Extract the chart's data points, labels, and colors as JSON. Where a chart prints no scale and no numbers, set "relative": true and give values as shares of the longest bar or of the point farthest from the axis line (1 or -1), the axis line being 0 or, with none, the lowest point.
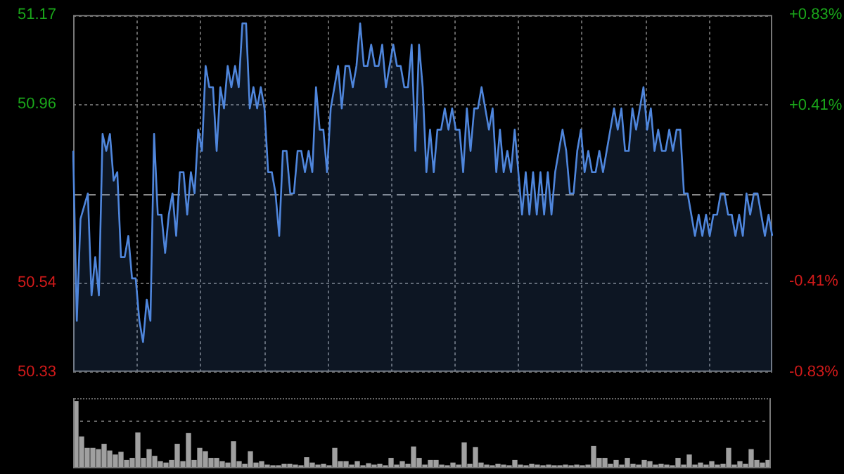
{
  "chart_data": [
    {
      "type": "area",
      "categories": [
        null,
        null,
        null,
        null,
        null,
        null,
        null,
        null,
        null,
        null,
        null,
        null,
        null,
        null,
        null,
        null,
        null,
        null,
        null,
        null,
        null,
        null,
        null,
        null,
        null,
        null,
        null,
        null,
        null,
        null,
        null,
        null,
        null,
        null,
        null,
        null,
        null,
        null,
        null,
        null,
        null,
        null,
        null,
        null,
        null,
        null,
        null,
        null,
        null,
        null,
        null,
        null,
        null,
        null,
        null,
        null,
        null,
        null,
        null,
        null,
        null,
        null,
        null,
        null,
        null,
        null,
        null,
        null,
        null,
        null,
        null,
        null,
        null,
        null,
        null,
        null,
        null,
        null,
        null,
        null,
        null,
        null,
        null,
        null,
        null,
        null,
        null,
        null,
        null,
        null,
        null,
        null,
        null,
        null,
        null,
        null,
        null,
        null,
        null,
        null,
        null,
        null,
        null,
        null,
        null,
        null,
        null,
        null,
        null,
        null,
        null,
        null,
        null,
        null,
        null,
        null,
        null,
        null,
        null,
        null,
        null,
        null,
        null,
        null,
        null,
        null,
        null,
        null,
        null,
        null,
        null,
        null,
        null,
        null,
        null,
        null,
        null,
        null,
        null,
        null,
        null,
        null,
        null,
        null,
        null,
        null,
        null,
        null,
        null,
        null,
        null,
        null,
        null,
        null,
        null,
        null,
        null,
        null,
        null,
        null,
        null,
        null,
        null,
        null,
        null,
        null,
        null,
        null,
        null,
        null,
        null,
        null,
        null,
        null,
        null,
        null,
        null,
        null,
        null,
        null,
        null,
        null,
        null,
        null,
        null,
        null,
        null,
        null,
        null,
        null,
        null
      ],
      "series": [
        {
          "color": "#4f86dc",
          "values": [
            50.85,
            50.45,
            50.69,
            50.72,
            50.75,
            50.51,
            50.6,
            50.51,
            50.89,
            50.85,
            50.89,
            50.78,
            50.8,
            50.6,
            50.6,
            50.65,
            50.55,
            50.55,
            50.45,
            50.4,
            50.5,
            50.45,
            50.89,
            50.7,
            50.7,
            50.61,
            50.7,
            50.75,
            50.65,
            50.8,
            50.8,
            50.7,
            50.8,
            50.75,
            50.9,
            50.85,
            51.05,
            51.0,
            51.0,
            50.85,
            51.0,
            50.95,
            51.05,
            51.0,
            51.05,
            51.0,
            51.15,
            51.15,
            50.95,
            51.0,
            50.95,
            51.0,
            50.95,
            50.8,
            50.8,
            50.75,
            50.65,
            50.85,
            50.85,
            50.75,
            50.75,
            50.85,
            50.85,
            50.8,
            50.85,
            50.8,
            51.0,
            50.9,
            50.9,
            50.8,
            50.95,
            51.0,
            51.05,
            50.95,
            51.05,
            51.05,
            51.0,
            51.05,
            51.15,
            51.05,
            51.05,
            51.1,
            51.05,
            51.05,
            51.1,
            51.0,
            51.05,
            51.1,
            51.05,
            51.05,
            51.0,
            51.0,
            51.1,
            50.85,
            51.1,
            51.0,
            50.8,
            50.9,
            50.8,
            50.9,
            50.9,
            50.95,
            50.9,
            50.95,
            50.9,
            50.9,
            50.8,
            50.95,
            50.85,
            50.95,
            50.95,
            51.0,
            50.95,
            50.9,
            50.95,
            50.8,
            50.9,
            50.8,
            50.85,
            50.8,
            50.9,
            50.8,
            50.7,
            50.8,
            50.7,
            50.8,
            50.7,
            50.8,
            50.7,
            50.8,
            50.7,
            50.8,
            50.85,
            50.9,
            50.85,
            50.75,
            50.75,
            50.85,
            50.9,
            50.8,
            50.85,
            50.8,
            50.8,
            50.85,
            50.8,
            50.85,
            50.9,
            50.95,
            50.9,
            50.95,
            50.85,
            50.85,
            50.95,
            50.9,
            50.95,
            51.0,
            50.9,
            50.95,
            50.85,
            50.9,
            50.85,
            50.85,
            50.9,
            50.85,
            50.9,
            50.9,
            50.75,
            50.75,
            50.7,
            50.65,
            50.7,
            50.65,
            50.7,
            50.65,
            50.7,
            50.7,
            50.75,
            50.75,
            50.7,
            50.7,
            50.65,
            50.7,
            50.65,
            50.75,
            50.7,
            50.75,
            50.75,
            50.7,
            50.65,
            50.7,
            50.65
          ]
        }
      ],
      "ylim": [
        50.33,
        51.17
      ],
      "yticks": [
        50.33,
        50.54,
        50.96,
        51.17
      ],
      "y2lim": [
        -0.83,
        0.83
      ],
      "y2ticks": [
        {
          "value": 0.83,
          "label": "+0.83%"
        },
        {
          "value": 0.41,
          "label": "+0.41%"
        },
        {
          "value": -0.41,
          "label": "-0.41%"
        },
        {
          "value": -0.83,
          "label": "-0.83%"
        }
      ],
      "ref_lines": [
        {
          "axis": "y",
          "value": 50.75,
          "line_style": "dashed"
        }
      ],
      "grid": true,
      "legend": false,
      "marker": "none",
      "line_style": "solid"
    },
    {
      "type": "bar",
      "categories": [
        null,
        null,
        null,
        null,
        null,
        null,
        null,
        null,
        null,
        null,
        null,
        null,
        null,
        null,
        null,
        null,
        null,
        null,
        null,
        null,
        null,
        null,
        null,
        null,
        null,
        null,
        null,
        null,
        null,
        null,
        null,
        null,
        null,
        null,
        null,
        null,
        null,
        null,
        null,
        null,
        null,
        null,
        null,
        null,
        null,
        null,
        null,
        null,
        null,
        null,
        null,
        null,
        null,
        null,
        null,
        null,
        null,
        null,
        null,
        null,
        null,
        null,
        null,
        null,
        null,
        null,
        null,
        null,
        null,
        null,
        null,
        null,
        null,
        null,
        null,
        null,
        null,
        null,
        null,
        null,
        null,
        null,
        null,
        null,
        null,
        null,
        null,
        null,
        null,
        null,
        null,
        null,
        null,
        null,
        null,
        null,
        null,
        null,
        null,
        null,
        null,
        null,
        null,
        null,
        null,
        null,
        null,
        null,
        null,
        null,
        null,
        null,
        null,
        null,
        null,
        null,
        null,
        null,
        null,
        null,
        null,
        null,
        null,
        null
      ],
      "relative": true,
      "color": "#a0a0a0",
      "grid": true,
      "legend": false,
      "ref_lines": [
        {
          "axis": "y",
          "value": 0.72,
          "color": "#666666",
          "line_style": "dotted"
        }
      ],
      "values": [
        1.0,
        0.47,
        0.3,
        0.3,
        0.28,
        0.36,
        0.26,
        0.2,
        0.24,
        0.12,
        0.15,
        0.53,
        0.15,
        0.28,
        0.18,
        0.1,
        0.08,
        0.12,
        0.36,
        0.1,
        0.52,
        0.12,
        0.3,
        0.25,
        0.15,
        0.15,
        0.1,
        0.08,
        0.4,
        0.1,
        0.06,
        0.25,
        0.08,
        0.1,
        0.05,
        0.04,
        0.04,
        0.06,
        0.06,
        0.05,
        0.04,
        0.16,
        0.08,
        0.05,
        0.06,
        0.04,
        0.3,
        0.1,
        0.1,
        0.05,
        0.1,
        0.04,
        0.07,
        0.05,
        0.06,
        0.04,
        0.15,
        0.05,
        0.1,
        0.06,
        0.32,
        0.15,
        0.05,
        0.12,
        0.12,
        0.05,
        0.04,
        0.08,
        0.05,
        0.38,
        0.06,
        0.31,
        0.08,
        0.05,
        0.04,
        0.06,
        0.05,
        0.04,
        0.12,
        0.05,
        0.04,
        0.06,
        0.05,
        0.04,
        0.05,
        0.04,
        0.04,
        0.05,
        0.04,
        0.05,
        0.04,
        0.05,
        0.33,
        0.15,
        0.15,
        0.06,
        0.12,
        0.05,
        0.15,
        0.06,
        0.05,
        0.12,
        0.1,
        0.05,
        0.06,
        0.05,
        0.04,
        0.15,
        0.05,
        0.2,
        0.05,
        0.08,
        0.05,
        0.1,
        0.05,
        0.06,
        0.3,
        0.05,
        0.1,
        0.06,
        0.28,
        0.12,
        0.08,
        0.12
      ]
    }
  ]
}
